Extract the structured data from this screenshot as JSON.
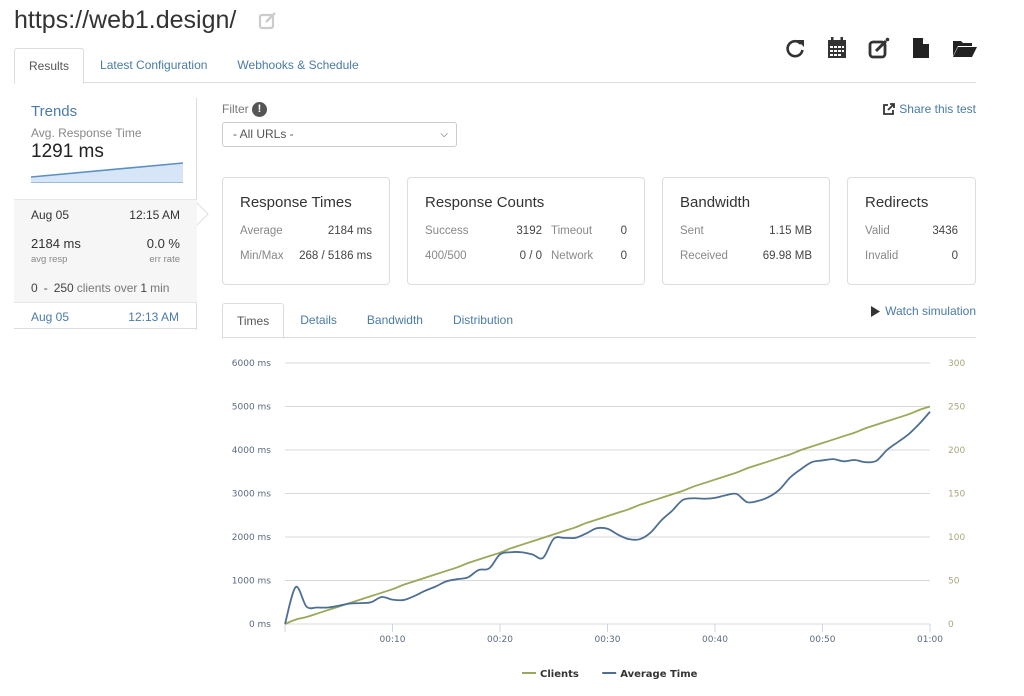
{
  "page": {
    "title": "https://web1.design/",
    "icons": {
      "title_edit": "edit-icon",
      "toolbar": [
        "refresh-icon",
        "calendar-icon",
        "edit-icon",
        "file-icon",
        "folder-open-icon"
      ]
    }
  },
  "tabs": [
    {
      "label": "Results",
      "active": true
    },
    {
      "label": "Latest Configuration",
      "active": false
    },
    {
      "label": "Webhooks & Schedule",
      "active": false
    }
  ],
  "sidebar": {
    "title": "Trends",
    "subtitle": "Avg. Response Time",
    "value": "1291 ms",
    "runs": [
      {
        "date": "Aug 05",
        "time": "12:15 AM",
        "avg_resp": "2184 ms",
        "avg_resp_label": "avg resp",
        "err_rate": "0.0 %",
        "err_rate_label": "err rate",
        "clients_from": "0",
        "clients_sep": "-",
        "clients_to": "250",
        "clients_mid": "clients over",
        "duration": "1",
        "duration_unit": "min"
      },
      {
        "date": "Aug 05",
        "time": "12:13 AM"
      }
    ]
  },
  "filter": {
    "label": "Filter",
    "info": "!",
    "selected": "- All URLs -"
  },
  "share": {
    "label": "Share this test",
    "icon": "share-icon"
  },
  "cards": {
    "response_times": {
      "title": "Response Times",
      "rows": [
        {
          "label": "Average",
          "value": "2184 ms"
        },
        {
          "label": "Min/Max",
          "value": "268 / 5186 ms"
        }
      ]
    },
    "response_counts": {
      "title": "Response Counts",
      "rows": [
        {
          "label": "Success",
          "value": "3192",
          "label2": "Timeout",
          "value2": "0"
        },
        {
          "label": "400/500",
          "value": "0 / 0",
          "label2": "Network",
          "value2": "0"
        }
      ]
    },
    "bandwidth": {
      "title": "Bandwidth",
      "rows": [
        {
          "label": "Sent",
          "value": "1.15 MB"
        },
        {
          "label": "Received",
          "value": "69.98 MB"
        }
      ]
    },
    "redirects": {
      "title": "Redirects",
      "rows": [
        {
          "label": "Valid",
          "value": "3436"
        },
        {
          "label": "Invalid",
          "value": "0"
        }
      ]
    }
  },
  "subtabs": [
    {
      "label": "Times",
      "active": true
    },
    {
      "label": "Details",
      "active": false
    },
    {
      "label": "Bandwidth",
      "active": false
    },
    {
      "label": "Distribution",
      "active": false
    }
  ],
  "watch": {
    "label": "Watch simulation",
    "icon": "play-icon"
  },
  "colors": {
    "link": "#4a7ba6",
    "clients": "#9aa85a",
    "average_time": "#4e6f94",
    "right_axis": "#a9a67a"
  },
  "chart_data": {
    "type": "line",
    "title": "",
    "xlabel": "",
    "x_ticks": [
      "00:10",
      "00:20",
      "00:30",
      "00:40",
      "00:50",
      "01:00"
    ],
    "x_tick_seconds": [
      10,
      20,
      30,
      40,
      50,
      60
    ],
    "xlim": [
      0,
      60
    ],
    "y_left": {
      "ticks": [
        "0 ms",
        "1000 ms",
        "2000 ms",
        "3000 ms",
        "4000 ms",
        "5000 ms",
        "6000 ms"
      ],
      "lim": [
        0,
        6000
      ]
    },
    "y_right": {
      "ticks": [
        "0",
        "50",
        "100",
        "150",
        "200",
        "250",
        "300"
      ],
      "lim": [
        0,
        300
      ]
    },
    "grid": true,
    "legend": {
      "position": "bottom",
      "entries": [
        "Clients",
        "Average Time"
      ]
    },
    "x": [
      0,
      1,
      2,
      3,
      4,
      5,
      6,
      7,
      8,
      9,
      10,
      11,
      12,
      13,
      14,
      15,
      16,
      17,
      18,
      19,
      20,
      21,
      22,
      23,
      24,
      25,
      26,
      27,
      28,
      29,
      30,
      31,
      32,
      33,
      34,
      35,
      36,
      37,
      38,
      39,
      40,
      41,
      42,
      43,
      44,
      45,
      46,
      47,
      48,
      49,
      50,
      51,
      52,
      53,
      54,
      55,
      56,
      57,
      58,
      59,
      60
    ],
    "series": [
      {
        "name": "Clients",
        "axis": "right",
        "values": [
          0,
          5,
          8,
          12,
          16,
          20,
          24,
          28,
          32,
          36,
          40,
          45,
          49,
          53,
          57,
          61,
          65,
          70,
          74,
          78,
          82,
          87,
          91,
          95,
          99,
          103,
          107,
          111,
          116,
          120,
          124,
          128,
          132,
          137,
          141,
          145,
          149,
          153,
          158,
          162,
          166,
          170,
          174,
          179,
          183,
          187,
          191,
          195,
          200,
          204,
          208,
          212,
          216,
          220,
          225,
          229,
          233,
          237,
          241,
          246,
          250
        ]
      },
      {
        "name": "Average Time",
        "axis": "left",
        "values": [
          0,
          850,
          400,
          380,
          380,
          420,
          470,
          480,
          500,
          620,
          560,
          550,
          640,
          760,
          860,
          980,
          1030,
          1070,
          1240,
          1280,
          1600,
          1650,
          1650,
          1600,
          1520,
          1960,
          1980,
          1980,
          2080,
          2200,
          2190,
          2050,
          1950,
          1950,
          2100,
          2380,
          2600,
          2850,
          2890,
          2880,
          2900,
          2960,
          2990,
          2800,
          2830,
          2920,
          3090,
          3370,
          3560,
          3720,
          3760,
          3790,
          3740,
          3770,
          3720,
          3750,
          4000,
          4180,
          4360,
          4600,
          4880
        ]
      }
    ]
  }
}
